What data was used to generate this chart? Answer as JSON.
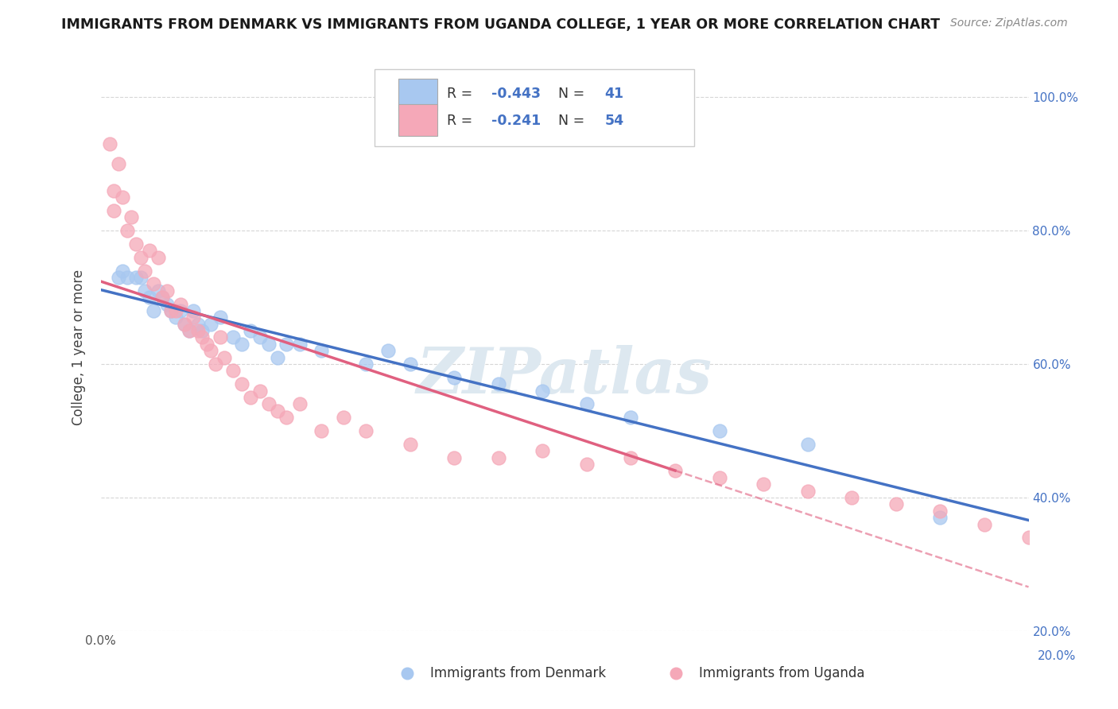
{
  "title": "IMMIGRANTS FROM DENMARK VS IMMIGRANTS FROM UGANDA COLLEGE, 1 YEAR OR MORE CORRELATION CHART",
  "source": "Source: ZipAtlas.com",
  "ylabel": "College, 1 year or more",
  "xlim": [
    0.0,
    0.021
  ],
  "ylim": [
    0.2,
    1.05
  ],
  "xticks": [
    0.0,
    0.005,
    0.01,
    0.015,
    0.02
  ],
  "xticklabels": [
    "0.0%",
    "",
    "",
    "",
    ""
  ],
  "right_xtick_label": "20.0%",
  "yticks_right": [
    0.2,
    0.4,
    0.6,
    0.8,
    1.0
  ],
  "yticklabels_right": [
    "20.0%",
    "40.0%",
    "60.0%",
    "80.0%",
    "100.0%"
  ],
  "denmark_color": "#a8c8f0",
  "uganda_color": "#f5a8b8",
  "denmark_line_color": "#4472c4",
  "uganda_line_color": "#e06080",
  "denmark_R": -0.443,
  "denmark_N": 41,
  "uganda_R": -0.241,
  "uganda_N": 54,
  "legend_label_denmark": "Immigrants from Denmark",
  "legend_label_uganda": "Immigrants from Uganda",
  "denmark_x": [
    0.0004,
    0.0005,
    0.0006,
    0.0008,
    0.0009,
    0.001,
    0.0011,
    0.0012,
    0.0013,
    0.0014,
    0.0015,
    0.0016,
    0.0017,
    0.0018,
    0.0019,
    0.002,
    0.0021,
    0.0022,
    0.0023,
    0.0025,
    0.0027,
    0.003,
    0.0032,
    0.0034,
    0.0036,
    0.0038,
    0.004,
    0.0042,
    0.0045,
    0.005,
    0.006,
    0.0065,
    0.007,
    0.008,
    0.009,
    0.01,
    0.011,
    0.012,
    0.014,
    0.016,
    0.019
  ],
  "denmark_y": [
    0.73,
    0.74,
    0.73,
    0.73,
    0.73,
    0.71,
    0.7,
    0.68,
    0.71,
    0.7,
    0.69,
    0.68,
    0.67,
    0.68,
    0.66,
    0.65,
    0.68,
    0.66,
    0.65,
    0.66,
    0.67,
    0.64,
    0.63,
    0.65,
    0.64,
    0.63,
    0.61,
    0.63,
    0.63,
    0.62,
    0.6,
    0.62,
    0.6,
    0.58,
    0.57,
    0.56,
    0.54,
    0.52,
    0.5,
    0.48,
    0.37
  ],
  "uganda_x": [
    0.0002,
    0.0003,
    0.0003,
    0.0004,
    0.0005,
    0.0006,
    0.0007,
    0.0008,
    0.0009,
    0.001,
    0.0011,
    0.0012,
    0.0013,
    0.0014,
    0.0015,
    0.0016,
    0.0017,
    0.0018,
    0.0019,
    0.002,
    0.0021,
    0.0022,
    0.0023,
    0.0024,
    0.0025,
    0.0026,
    0.0027,
    0.0028,
    0.003,
    0.0032,
    0.0034,
    0.0036,
    0.0038,
    0.004,
    0.0042,
    0.0045,
    0.005,
    0.0055,
    0.006,
    0.007,
    0.008,
    0.009,
    0.01,
    0.011,
    0.012,
    0.013,
    0.014,
    0.015,
    0.016,
    0.017,
    0.018,
    0.019,
    0.02,
    0.021
  ],
  "uganda_y": [
    0.93,
    0.86,
    0.83,
    0.9,
    0.85,
    0.8,
    0.82,
    0.78,
    0.76,
    0.74,
    0.77,
    0.72,
    0.76,
    0.7,
    0.71,
    0.68,
    0.68,
    0.69,
    0.66,
    0.65,
    0.67,
    0.65,
    0.64,
    0.63,
    0.62,
    0.6,
    0.64,
    0.61,
    0.59,
    0.57,
    0.55,
    0.56,
    0.54,
    0.53,
    0.52,
    0.54,
    0.5,
    0.52,
    0.5,
    0.48,
    0.46,
    0.46,
    0.47,
    0.45,
    0.46,
    0.44,
    0.43,
    0.42,
    0.41,
    0.4,
    0.39,
    0.38,
    0.36,
    0.34
  ],
  "background_color": "#ffffff",
  "grid_color": "#cccccc",
  "watermark_text": "ZIPatlas",
  "watermark_color": "#dde8f0"
}
